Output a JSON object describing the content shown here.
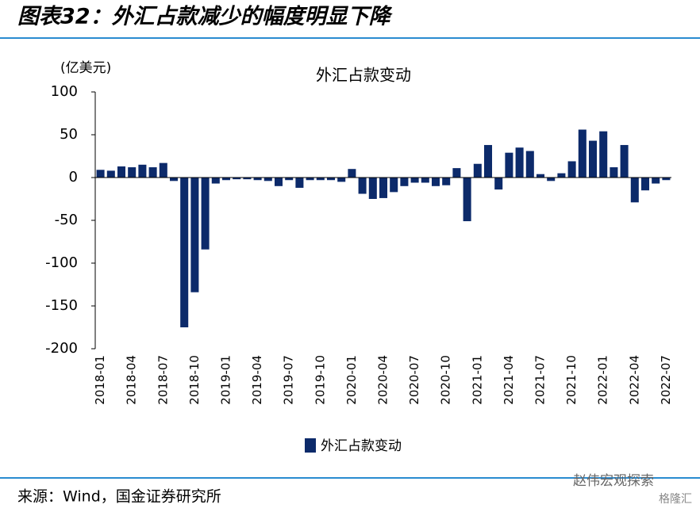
{
  "header": {
    "title": "图表32：外汇占款减少的幅度明显下降"
  },
  "chart_data": {
    "type": "bar",
    "title": "外汇占款变动",
    "y_label": "(亿美元)",
    "categories": [
      "2018-01",
      null,
      null,
      "2018-04",
      null,
      null,
      "2018-07",
      null,
      null,
      "2018-10",
      null,
      null,
      "2019-01",
      null,
      null,
      "2019-04",
      null,
      null,
      "2019-07",
      null,
      null,
      "2019-10",
      null,
      null,
      "2020-01",
      null,
      null,
      "2020-04",
      null,
      null,
      "2020-07",
      null,
      null,
      "2020-10",
      null,
      null,
      "2021-01",
      null,
      null,
      "2021-04",
      null,
      null,
      "2021-07",
      null,
      null,
      "2021-10",
      null,
      null,
      "2022-01",
      null,
      null,
      "2022-04",
      null,
      null,
      "2022-07"
    ],
    "series": [
      {
        "name": "外汇占款变动",
        "color": "#0c2a6a",
        "values": [
          9,
          8,
          13,
          12,
          15,
          12,
          17,
          -4,
          -175,
          -134,
          -84,
          -7,
          -3,
          -2,
          -2,
          -3,
          -4,
          -10,
          -3,
          -12,
          -3,
          -3,
          -3,
          -5,
          10,
          -19,
          -25,
          -24,
          -17,
          -10,
          -6,
          -6,
          -10,
          -9,
          11,
          -51,
          16,
          38,
          -14,
          29,
          35,
          31,
          4,
          -4,
          5,
          19,
          56,
          43,
          54,
          12,
          38,
          -29,
          -15,
          -7,
          -3
        ]
      }
    ],
    "ylim": [
      -200,
      100
    ],
    "yticks": [
      100,
      50,
      0,
      -50,
      -100,
      -150,
      -200
    ],
    "grid": false
  },
  "footer": {
    "source": "来源：Wind，国金证券研究所",
    "watermark": "赵伟宏观探索",
    "watermark2": "格隆汇"
  }
}
